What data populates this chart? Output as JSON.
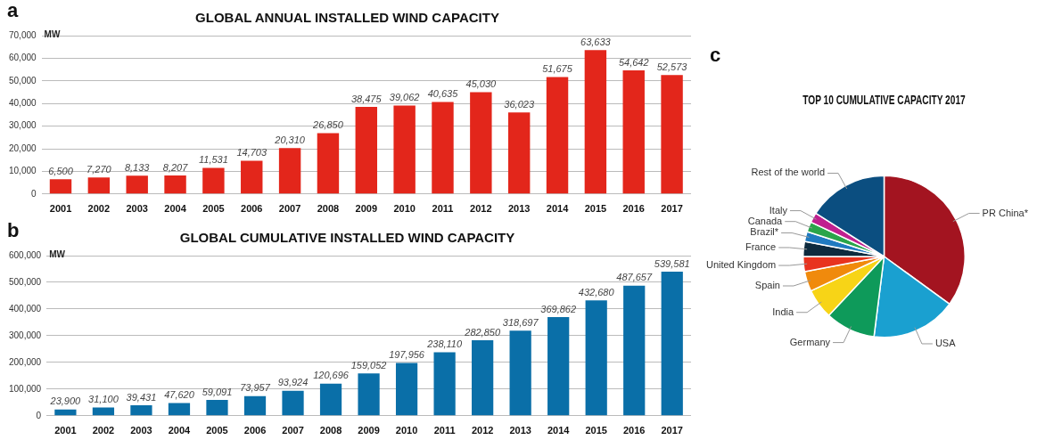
{
  "chart_data": [
    {
      "type": "bar",
      "title": "GLOBAL ANNUAL INSTALLED WIND CAPACITY",
      "ylabel": "MW",
      "annotations": [
        "a"
      ],
      "categories": [
        "2001",
        "2002",
        "2003",
        "2004",
        "2005",
        "2006",
        "2007",
        "2008",
        "2009",
        "2010",
        "2011",
        "2012",
        "2013",
        "2014",
        "2015",
        "2016",
        "2017"
      ],
      "values": [
        6500,
        7270,
        8133,
        8207,
        11531,
        14703,
        20310,
        26850,
        38475,
        39062,
        40635,
        45030,
        36023,
        51675,
        63633,
        54642,
        52573
      ],
      "value_labels": [
        "6,500",
        "7,270",
        "8,133",
        "8,207",
        "11,531",
        "14,703",
        "20,310",
        "26,850",
        "38,475",
        "39,062",
        "40,635",
        "45,030",
        "36,023",
        "51,675",
        "63,633",
        "54,642",
        "52,573"
      ],
      "color": "#e3261b",
      "ylim": [
        0,
        70000
      ],
      "yticks": [
        0,
        {
          "value": 10000,
          "label": "10,000"
        },
        {
          "value": 20000,
          "label": "20,000"
        },
        {
          "value": 30000,
          "label": "30,000"
        },
        {
          "value": 40000,
          "label": "40,000"
        },
        {
          "value": 50000,
          "label": "50,000"
        },
        {
          "value": 60000,
          "label": "60,000"
        },
        {
          "value": 70000,
          "label": "70,000"
        }
      ],
      "grid": "y",
      "legend": false
    },
    {
      "type": "bar",
      "title": "GLOBAL CUMULATIVE INSTALLED WIND CAPACITY",
      "ylabel": "MW",
      "annotations": [
        "b"
      ],
      "categories": [
        "2001",
        "2002",
        "2003",
        "2004",
        "2005",
        "2006",
        "2007",
        "2008",
        "2009",
        "2010",
        "2011",
        "2012",
        "2013",
        "2014",
        "2015",
        "2016",
        "2017"
      ],
      "values": [
        23900,
        31100,
        39431,
        47620,
        59091,
        73957,
        93924,
        120696,
        159052,
        197956,
        238110,
        282850,
        318697,
        369862,
        432680,
        487657,
        539581
      ],
      "value_labels": [
        "23,900",
        "31,100",
        "39,431",
        "47,620",
        "59,091",
        "73,957",
        "93,924",
        "120,696",
        "159,052",
        "197,956",
        "238,110",
        "282,850",
        "318,697",
        "369,862",
        "432,680",
        "487,657",
        "539,581"
      ],
      "color": "#0a6fa8",
      "ylim": [
        0,
        600000
      ],
      "yticks": [
        0,
        {
          "value": 100000,
          "label": "100,000"
        },
        {
          "value": 200000,
          "label": "200,000"
        },
        {
          "value": 300000,
          "label": "300,000"
        },
        {
          "value": 400000,
          "label": "400,000"
        },
        {
          "value": 500000,
          "label": "500,000"
        },
        {
          "value": 600000,
          "label": "600,000"
        }
      ],
      "grid": "y",
      "legend": false
    },
    {
      "type": "pie",
      "title": "TOP 10 CUMULATIVE CAPACITY 2017",
      "annotations": [
        "c"
      ],
      "categories": [
        "PR China*",
        "USA",
        "Germany",
        "India",
        "Spain",
        "United Kingdom",
        "France",
        "Brazil*",
        "Canada",
        "Italy",
        "Rest of the world"
      ],
      "values": [
        35,
        17,
        10,
        6,
        4,
        3,
        3,
        2,
        2,
        2,
        16
      ],
      "colors": [
        "#a31420",
        "#1aa0d0",
        "#0e9a5a",
        "#f7d417",
        "#f08a0c",
        "#e8331f",
        "#0d2a3e",
        "#1f7ac0",
        "#2aa54a",
        "#c0208f",
        "#0b4e80"
      ],
      "legend": false
    }
  ]
}
